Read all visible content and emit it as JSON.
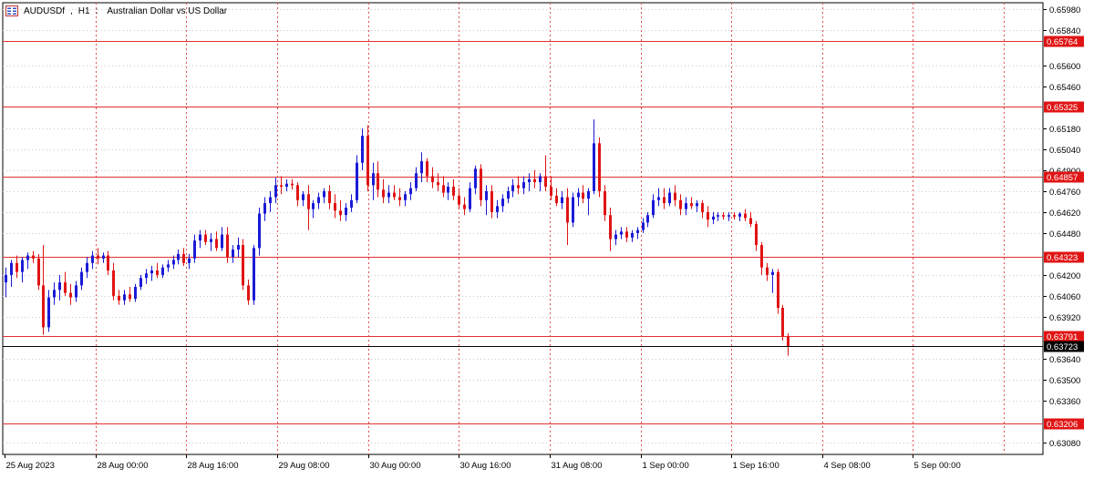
{
  "window": {
    "symbol": "AUDUSDf",
    "timeframe": "H1",
    "description": "Australian Dollar vs US Dollar",
    "menu_icon": "chart-menu-icon"
  },
  "colors": {
    "bull": "#1a1ad6",
    "bear": "#e01414",
    "level_line": "#e03030",
    "grid": "#c8c8c8",
    "vgrid": "#e05050",
    "current_price_bg": "#000000",
    "level_label_bg": "#e01414"
  },
  "chart_data": {
    "type": "candlestick",
    "y_ticks": [
      "0.65980",
      "0.65840",
      "0.65600",
      "0.65460",
      "0.65180",
      "0.65040",
      "0.64900",
      "0.64760",
      "0.64620",
      "0.64480",
      "0.64200",
      "0.64060",
      "0.63920",
      "0.63640",
      "0.63500",
      "0.63360",
      "0.63080"
    ],
    "x_ticks": [
      "25 Aug 2023",
      "28 Aug 00:00",
      "28 Aug 16:00",
      "29 Aug 08:00",
      "30 Aug 00:00",
      "30 Aug 16:00",
      "31 Aug 08:00",
      "1 Sep 00:00",
      "1 Sep 16:00",
      "4 Sep 08:00",
      "5 Sep 00:00"
    ],
    "ylim": [
      0.63,
      0.6602
    ],
    "levels": [
      "0.65764",
      "0.65325",
      "0.64857",
      "0.64323",
      "0.63791",
      "0.63206"
    ],
    "current_price": "0.63723",
    "grid": true,
    "candles": [
      [
        0.6415,
        0.6425,
        0.6405,
        0.642
      ],
      [
        0.642,
        0.643,
        0.6412,
        0.6428
      ],
      [
        0.6428,
        0.6433,
        0.6418,
        0.6422
      ],
      [
        0.6422,
        0.6432,
        0.6415,
        0.643
      ],
      [
        0.643,
        0.6435,
        0.6424,
        0.6433
      ],
      [
        0.6433,
        0.6436,
        0.6428,
        0.6431
      ],
      [
        0.6431,
        0.6434,
        0.641,
        0.6413
      ],
      [
        0.6413,
        0.644,
        0.638,
        0.6385
      ],
      [
        0.6385,
        0.641,
        0.6382,
        0.6405
      ],
      [
        0.6405,
        0.6415,
        0.64,
        0.641
      ],
      [
        0.641,
        0.642,
        0.6403,
        0.6415
      ],
      [
        0.6415,
        0.6422,
        0.6406,
        0.6408
      ],
      [
        0.6408,
        0.6414,
        0.64,
        0.6405
      ],
      [
        0.6405,
        0.6416,
        0.6402,
        0.6413
      ],
      [
        0.6413,
        0.6425,
        0.641,
        0.6422
      ],
      [
        0.6422,
        0.6432,
        0.6418,
        0.6428
      ],
      [
        0.6428,
        0.6436,
        0.6424,
        0.6433
      ],
      [
        0.6433,
        0.6438,
        0.6427,
        0.6431
      ],
      [
        0.6431,
        0.6435,
        0.6428,
        0.6433
      ],
      [
        0.6433,
        0.6436,
        0.642,
        0.6423
      ],
      [
        0.6423,
        0.6428,
        0.6403,
        0.6406
      ],
      [
        0.6406,
        0.641,
        0.64,
        0.6403
      ],
      [
        0.6403,
        0.641,
        0.64,
        0.6407
      ],
      [
        0.6407,
        0.6412,
        0.6402,
        0.6404
      ],
      [
        0.6404,
        0.6414,
        0.6402,
        0.6412
      ],
      [
        0.6412,
        0.642,
        0.641,
        0.6418
      ],
      [
        0.6418,
        0.6424,
        0.6414,
        0.6421
      ],
      [
        0.6421,
        0.6426,
        0.6416,
        0.6423
      ],
      [
        0.6423,
        0.6428,
        0.6418,
        0.642
      ],
      [
        0.642,
        0.6427,
        0.6418,
        0.6425
      ],
      [
        0.6425,
        0.643,
        0.6422,
        0.6427
      ],
      [
        0.6427,
        0.6433,
        0.6424,
        0.643
      ],
      [
        0.643,
        0.6437,
        0.6427,
        0.6434
      ],
      [
        0.6434,
        0.6438,
        0.6426,
        0.6428
      ],
      [
        0.6428,
        0.6434,
        0.6424,
        0.6431
      ],
      [
        0.6431,
        0.6447,
        0.6428,
        0.6443
      ],
      [
        0.6443,
        0.645,
        0.6438,
        0.6447
      ],
      [
        0.6447,
        0.645,
        0.644,
        0.6442
      ],
      [
        0.6442,
        0.6448,
        0.6436,
        0.6444
      ],
      [
        0.6444,
        0.6449,
        0.6436,
        0.6438
      ],
      [
        0.6438,
        0.6452,
        0.6436,
        0.6447
      ],
      [
        0.6447,
        0.6452,
        0.6428,
        0.6432
      ],
      [
        0.6432,
        0.644,
        0.6428,
        0.6437
      ],
      [
        0.6437,
        0.6445,
        0.6432,
        0.644
      ],
      [
        0.644,
        0.6444,
        0.641,
        0.6413
      ],
      [
        0.6413,
        0.6417,
        0.64,
        0.6403
      ],
      [
        0.6403,
        0.644,
        0.64,
        0.6438
      ],
      [
        0.6438,
        0.6465,
        0.6433,
        0.6461
      ],
      [
        0.6461,
        0.6472,
        0.6456,
        0.6468
      ],
      [
        0.6468,
        0.6476,
        0.6462,
        0.6472
      ],
      [
        0.6472,
        0.6485,
        0.6468,
        0.648
      ],
      [
        0.648,
        0.6486,
        0.6474,
        0.6479
      ],
      [
        0.6479,
        0.6484,
        0.6476,
        0.6481
      ],
      [
        0.6481,
        0.6484,
        0.6477,
        0.648
      ],
      [
        0.648,
        0.6482,
        0.6466,
        0.647
      ],
      [
        0.647,
        0.6476,
        0.6466,
        0.6474
      ],
      [
        0.6474,
        0.648,
        0.645,
        0.6464
      ],
      [
        0.6464,
        0.647,
        0.6458,
        0.6468
      ],
      [
        0.6468,
        0.6475,
        0.6464,
        0.6472
      ],
      [
        0.6472,
        0.6478,
        0.6468,
        0.6476
      ],
      [
        0.6476,
        0.648,
        0.6464,
        0.6468
      ],
      [
        0.6468,
        0.6474,
        0.6458,
        0.6463
      ],
      [
        0.6463,
        0.647,
        0.6456,
        0.646
      ],
      [
        0.646,
        0.6468,
        0.6456,
        0.6465
      ],
      [
        0.6465,
        0.6474,
        0.6462,
        0.647
      ],
      [
        0.647,
        0.65,
        0.6468,
        0.6495
      ],
      [
        0.6495,
        0.6518,
        0.649,
        0.6513
      ],
      [
        0.6513,
        0.652,
        0.6476,
        0.648
      ],
      [
        0.648,
        0.6495,
        0.647,
        0.6488
      ],
      [
        0.6488,
        0.6496,
        0.6472,
        0.6477
      ],
      [
        0.6477,
        0.6484,
        0.6468,
        0.6472
      ],
      [
        0.6472,
        0.648,
        0.6468,
        0.6475
      ],
      [
        0.6475,
        0.648,
        0.647,
        0.6472
      ],
      [
        0.6472,
        0.6478,
        0.6466,
        0.647
      ],
      [
        0.647,
        0.6476,
        0.6466,
        0.6474
      ],
      [
        0.6474,
        0.6482,
        0.647,
        0.6478
      ],
      [
        0.6478,
        0.6492,
        0.6476,
        0.6488
      ],
      [
        0.6488,
        0.6502,
        0.6482,
        0.6496
      ],
      [
        0.6496,
        0.6498,
        0.6482,
        0.6486
      ],
      [
        0.6486,
        0.6492,
        0.6478,
        0.6482
      ],
      [
        0.6482,
        0.6488,
        0.6476,
        0.648
      ],
      [
        0.648,
        0.6486,
        0.6472,
        0.6475
      ],
      [
        0.6475,
        0.6482,
        0.647,
        0.6479
      ],
      [
        0.6479,
        0.6484,
        0.647,
        0.6473
      ],
      [
        0.6473,
        0.6478,
        0.6464,
        0.6467
      ],
      [
        0.6467,
        0.6472,
        0.646,
        0.6464
      ],
      [
        0.6464,
        0.6482,
        0.6462,
        0.6478
      ],
      [
        0.6478,
        0.6493,
        0.6474,
        0.6491
      ],
      [
        0.6491,
        0.6494,
        0.6466,
        0.647
      ],
      [
        0.647,
        0.648,
        0.646,
        0.6476
      ],
      [
        0.6476,
        0.648,
        0.6458,
        0.6462
      ],
      [
        0.6462,
        0.647,
        0.6458,
        0.6466
      ],
      [
        0.6466,
        0.6474,
        0.6462,
        0.6471
      ],
      [
        0.6471,
        0.6479,
        0.6468,
        0.6476
      ],
      [
        0.6476,
        0.6484,
        0.6472,
        0.648
      ],
      [
        0.648,
        0.6486,
        0.6474,
        0.6478
      ],
      [
        0.6478,
        0.6486,
        0.6474,
        0.6482
      ],
      [
        0.6482,
        0.6488,
        0.6476,
        0.6484
      ],
      [
        0.6484,
        0.649,
        0.6478,
        0.6482
      ],
      [
        0.6482,
        0.6488,
        0.6476,
        0.6486
      ],
      [
        0.6486,
        0.65,
        0.6476,
        0.6479
      ],
      [
        0.6479,
        0.6486,
        0.647,
        0.6473
      ],
      [
        0.6473,
        0.6478,
        0.6466,
        0.6468
      ],
      [
        0.6468,
        0.6476,
        0.6464,
        0.6472
      ],
      [
        0.6472,
        0.6478,
        0.644,
        0.6455
      ],
      [
        0.6455,
        0.6475,
        0.6452,
        0.6472
      ],
      [
        0.6472,
        0.6478,
        0.6466,
        0.6475
      ],
      [
        0.6475,
        0.648,
        0.6468,
        0.6471
      ],
      [
        0.6471,
        0.6478,
        0.646,
        0.6476
      ],
      [
        0.6476,
        0.6524,
        0.6474,
        0.6508
      ],
      [
        0.6508,
        0.6512,
        0.6472,
        0.6476
      ],
      [
        0.6476,
        0.648,
        0.6456,
        0.646
      ],
      [
        0.646,
        0.6465,
        0.6436,
        0.6444
      ],
      [
        0.6444,
        0.645,
        0.644,
        0.6447
      ],
      [
        0.6447,
        0.6452,
        0.6444,
        0.6449
      ],
      [
        0.6449,
        0.6452,
        0.6442,
        0.6445
      ],
      [
        0.6445,
        0.645,
        0.6442,
        0.6448
      ],
      [
        0.6448,
        0.6452,
        0.6444,
        0.645
      ],
      [
        0.645,
        0.6458,
        0.6448,
        0.6455
      ],
      [
        0.6455,
        0.6462,
        0.6452,
        0.646
      ],
      [
        0.646,
        0.6474,
        0.6458,
        0.647
      ],
      [
        0.647,
        0.6478,
        0.6466,
        0.6472
      ],
      [
        0.6472,
        0.6478,
        0.6464,
        0.6468
      ],
      [
        0.6468,
        0.6478,
        0.6466,
        0.6475
      ],
      [
        0.6475,
        0.648,
        0.6466,
        0.647
      ],
      [
        0.647,
        0.6474,
        0.646,
        0.6464
      ],
      [
        0.6464,
        0.6472,
        0.646,
        0.6468
      ],
      [
        0.6468,
        0.6472,
        0.6464,
        0.6466
      ],
      [
        0.6466,
        0.647,
        0.6462,
        0.6468
      ],
      [
        0.6468,
        0.647,
        0.6458,
        0.6462
      ],
      [
        0.6462,
        0.6466,
        0.6452,
        0.6457
      ],
      [
        0.6457,
        0.6462,
        0.6454,
        0.6459
      ],
      [
        0.6459,
        0.6462,
        0.6456,
        0.646
      ],
      [
        0.646,
        0.6462,
        0.6457,
        0.6459
      ],
      [
        0.6459,
        0.6462,
        0.6456,
        0.646
      ],
      [
        0.646,
        0.6462,
        0.6457,
        0.6459
      ],
      [
        0.6459,
        0.6462,
        0.6456,
        0.6461
      ],
      [
        0.6461,
        0.6464,
        0.6456,
        0.6458
      ],
      [
        0.6458,
        0.6462,
        0.6452,
        0.6454
      ],
      [
        0.6454,
        0.6456,
        0.6436,
        0.644
      ],
      [
        0.644,
        0.6442,
        0.642,
        0.6425
      ],
      [
        0.6425,
        0.6428,
        0.6416,
        0.642
      ],
      [
        0.642,
        0.6424,
        0.6408,
        0.6422
      ],
      [
        0.6422,
        0.6424,
        0.6394,
        0.6398
      ],
      [
        0.6398,
        0.64,
        0.6376,
        0.6379
      ],
      [
        0.6379,
        0.6381,
        0.6366,
        0.6372
      ]
    ]
  }
}
